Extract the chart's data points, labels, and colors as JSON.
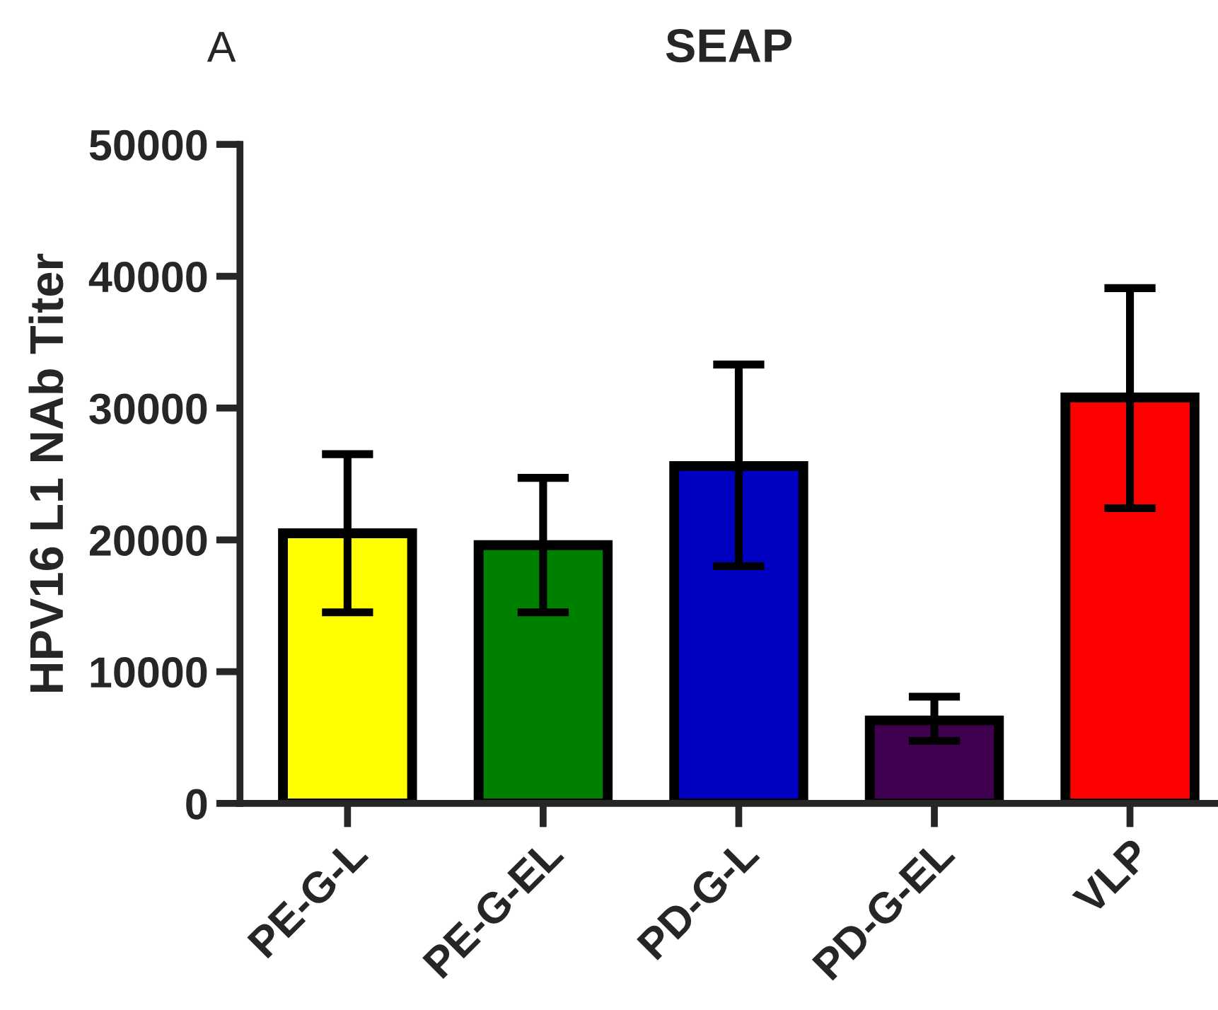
{
  "chart_data": {
    "type": "bar",
    "title": "SEAP",
    "ylabel": "HPV16 L1 NAb Titer",
    "annotations": [
      "A"
    ],
    "categories": [
      "PE-G-L",
      "PE-G-EL",
      "PD-G-L",
      "PD-G-EL",
      "VLP"
    ],
    "values": [
      20500,
      19600,
      25600,
      6300,
      30800
    ],
    "colors": [
      "#ffff00",
      "#008000",
      "#0000c0",
      "#400050",
      "#ff0000"
    ],
    "errors": [
      [
        14500,
        26500
      ],
      [
        14500,
        24700
      ],
      [
        18000,
        33300
      ],
      [
        4750,
        8100
      ],
      [
        22400,
        39100
      ]
    ],
    "ylim": [
      0,
      50000
    ],
    "yticks": [
      0,
      10000,
      20000,
      30000,
      40000,
      50000
    ],
    "grid": false,
    "legend": false
  }
}
